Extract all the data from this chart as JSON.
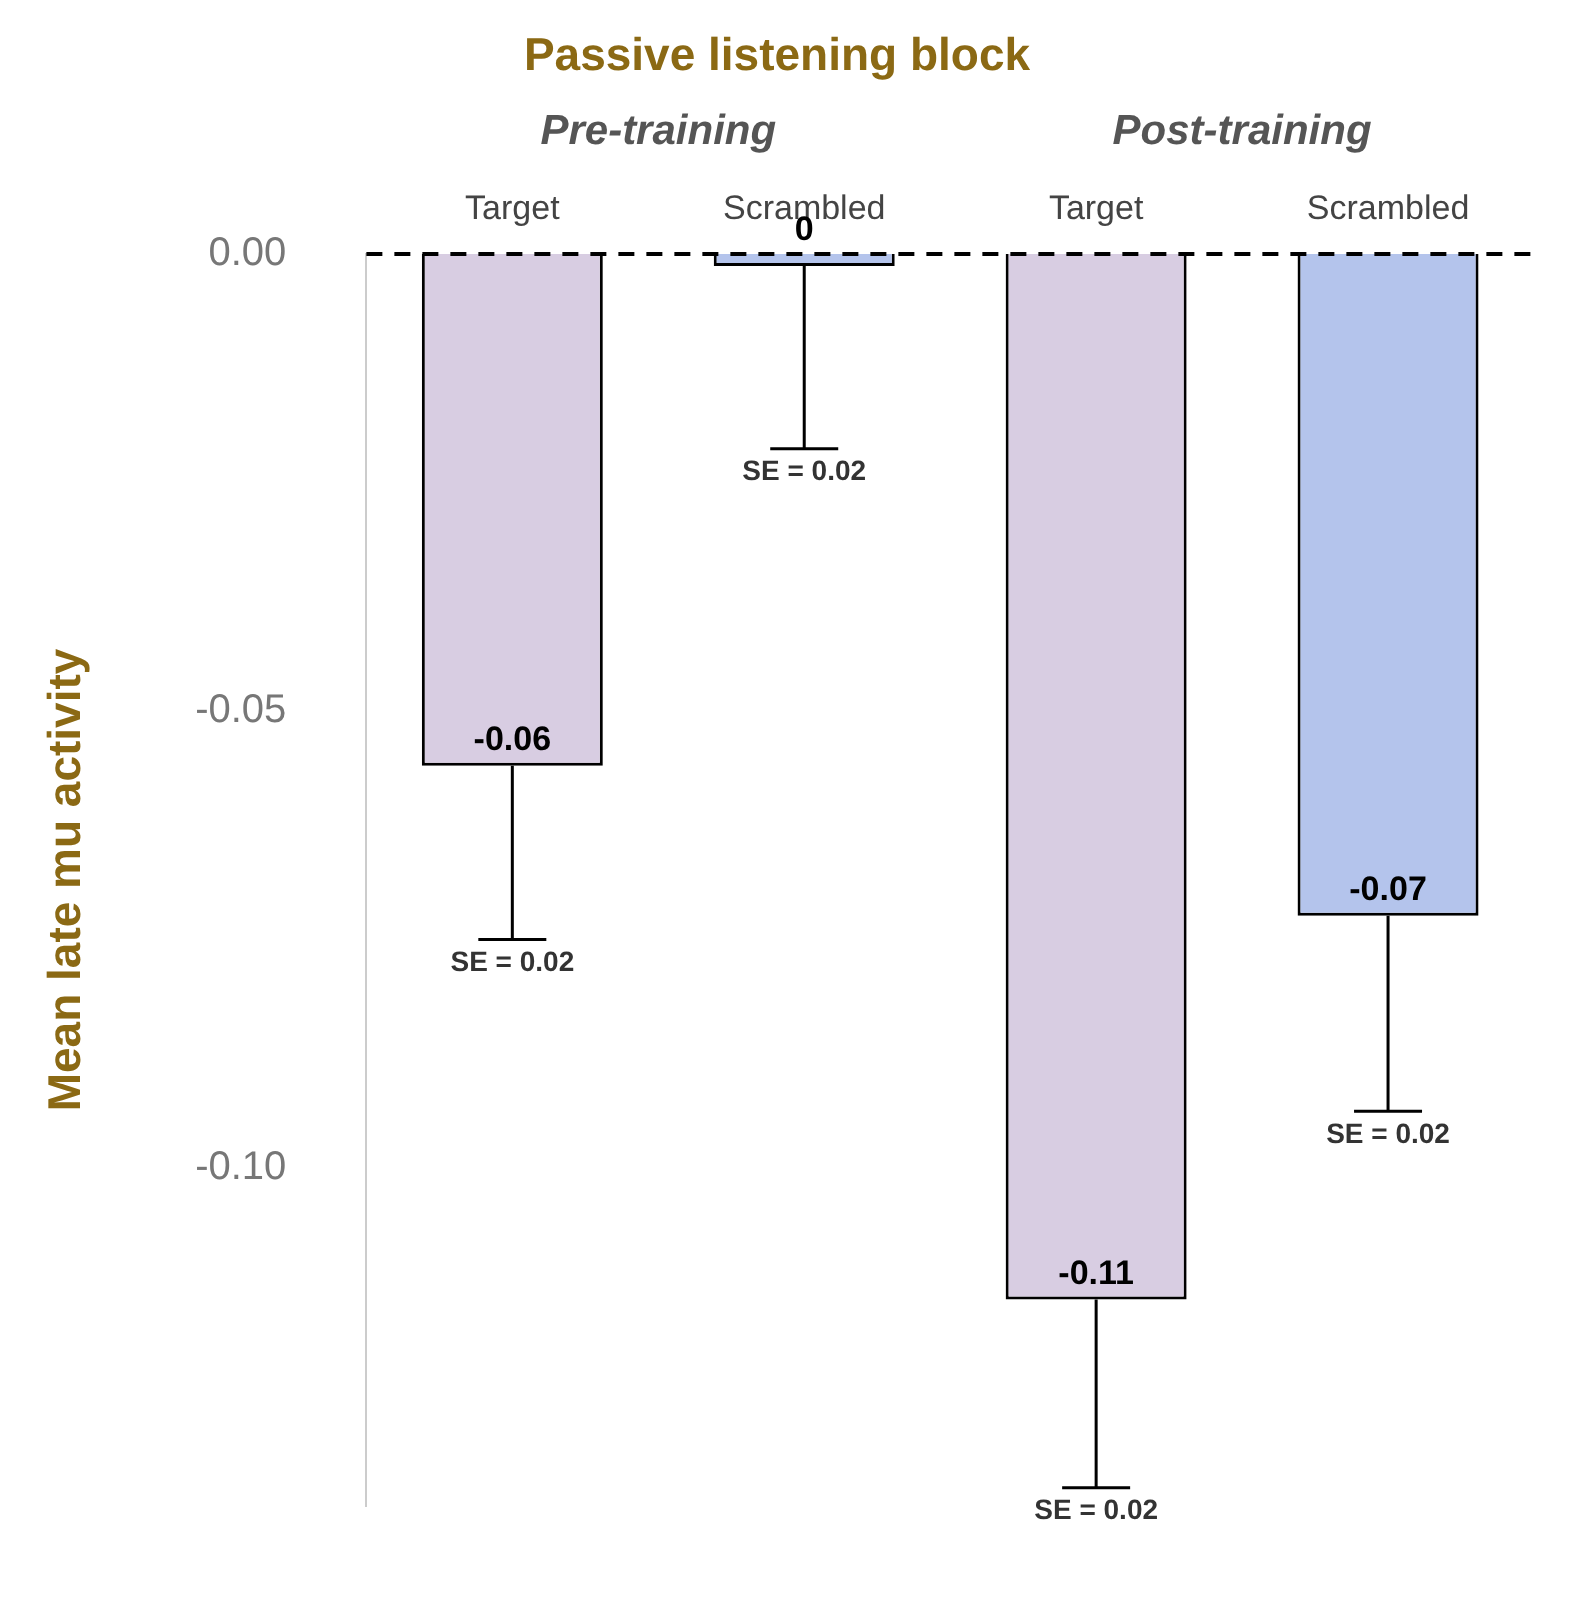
{
  "chart_data": {
    "type": "bar",
    "title": "Passive listening block",
    "ylabel": "Mean late mu activity",
    "categories": [
      "Target",
      "Scrambled",
      "Target",
      "Scrambled"
    ],
    "values": [
      -0.056,
      -0.0013,
      -0.1144,
      -0.0724
    ],
    "colors": [
      "#d8cde2",
      "#b4c4ec",
      "#d8cde2",
      "#b4c4ec"
    ],
    "errors": [
      [
        -0.075,
        -0.056
      ],
      [
        -0.0213,
        -0.0013
      ],
      [
        -0.135,
        -0.1144
      ],
      [
        -0.0938,
        -0.0724
      ]
    ],
    "value_labels": [
      "-0.06",
      "0",
      "-0.11",
      "-0.07"
    ],
    "annotations": [
      "Pre-training",
      "Post-training",
      "SE = 0.02",
      "SE = 0.02",
      "SE = 0.02",
      "SE = 0.02"
    ],
    "ref_lines": [
      {
        "axis": "y",
        "value": 0,
        "line_style": "dashed",
        "color": "#000000"
      }
    ],
    "ylim": [
      -0.137,
      0
    ],
    "yticks": [
      {
        "value": 0,
        "label": "0.00"
      },
      {
        "value": -0.05,
        "label": "-0.05"
      },
      {
        "value": -0.1,
        "label": "-0.10"
      }
    ],
    "grid": false,
    "legend": false
  }
}
